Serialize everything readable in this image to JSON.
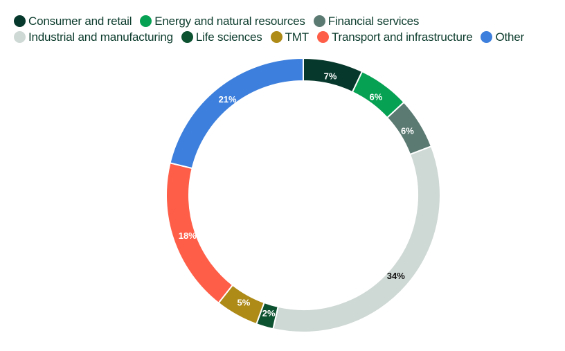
{
  "chart_data": {
    "type": "pie",
    "variant": "donut",
    "legend_position": "top",
    "categories": [
      "Consumer and retail",
      "Energy and natural resources",
      "Financial services",
      "Industrial and manufacturing",
      "Life sciences",
      "TMT",
      "Transport and infrastructure",
      "Other"
    ],
    "values": [
      7,
      6,
      6,
      34,
      2,
      5,
      18,
      21
    ],
    "labels": [
      "7%",
      "6%",
      "6%",
      "34%",
      "2%",
      "5%",
      "18%",
      "21%"
    ],
    "colors": [
      "#06382b",
      "#06a153",
      "#5b7a72",
      "#ced8d4",
      "#0d5230",
      "#ae8a17",
      "#fe5e48",
      "#3d7fdc"
    ],
    "label_colors": [
      "#ffffff",
      "#ffffff",
      "#ffffff",
      "#111111",
      "#ffffff",
      "#ffffff",
      "#ffffff",
      "#ffffff"
    ]
  }
}
